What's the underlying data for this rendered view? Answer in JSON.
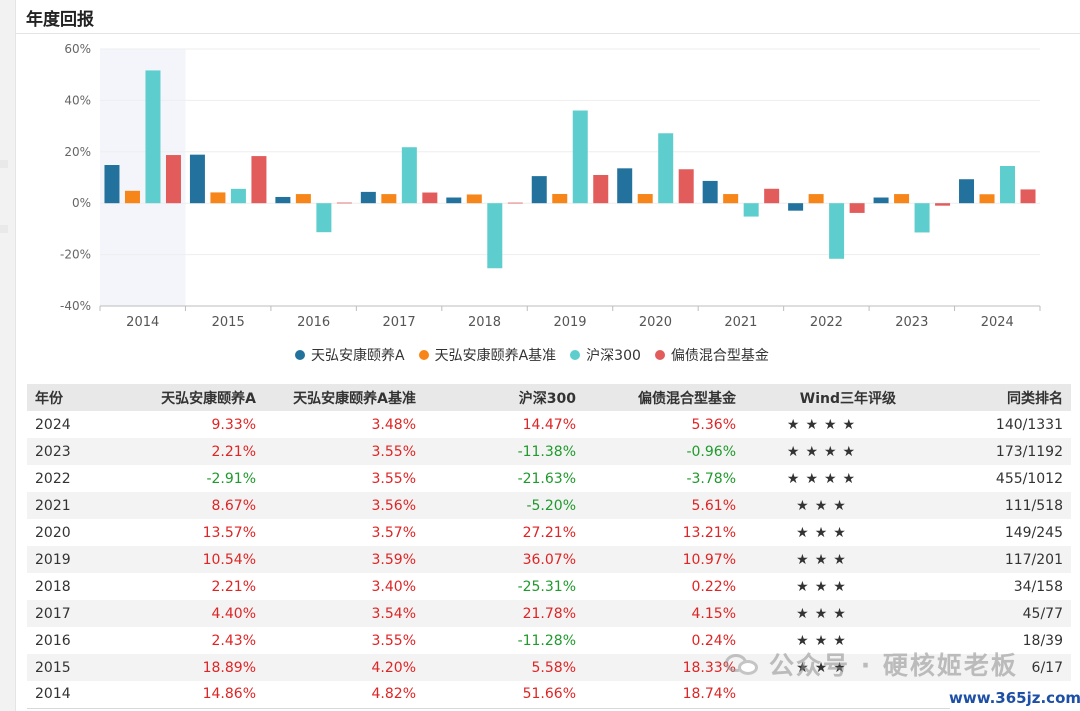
{
  "header": {
    "title": "年度回报"
  },
  "chart_data": {
    "type": "bar",
    "categories": [
      "2014",
      "2015",
      "2016",
      "2017",
      "2018",
      "2019",
      "2020",
      "2021",
      "2022",
      "2023",
      "2024"
    ],
    "series": [
      {
        "name": "天弘安康颐养A",
        "color": "#23729d",
        "values": [
          14.86,
          18.89,
          2.43,
          4.4,
          2.21,
          10.54,
          13.57,
          8.67,
          -2.91,
          2.21,
          9.33
        ]
      },
      {
        "name": "天弘安康颐养A基准",
        "color": "#f7861a",
        "values": [
          4.82,
          4.2,
          3.55,
          3.54,
          3.4,
          3.59,
          3.57,
          3.56,
          3.55,
          3.55,
          3.48
        ]
      },
      {
        "name": "沪深300",
        "color": "#5ecdcd",
        "values": [
          51.66,
          5.58,
          -11.28,
          21.78,
          -25.31,
          36.07,
          27.21,
          -5.2,
          -21.63,
          -11.38,
          14.47
        ]
      },
      {
        "name": "偏债混合型基金",
        "color": "#e25c5c",
        "values": [
          18.74,
          18.33,
          0.24,
          4.15,
          0.22,
          10.97,
          13.21,
          5.61,
          -3.78,
          -0.96,
          5.36
        ]
      }
    ],
    "ylim": [
      -40,
      60
    ],
    "yticks": [
      60,
      40,
      20,
      0,
      -20,
      -40
    ],
    "ytick_labels": [
      "60%",
      "40%",
      "20%",
      "0%",
      "-20%",
      "-40%"
    ],
    "highlighted_category": "2014",
    "grid": true,
    "legend_position": "bottom"
  },
  "table": {
    "headers": [
      "年份",
      "天弘安康颐养A",
      "天弘安康颐养A基准",
      "沪深300",
      "偏债混合型基金",
      "Wind三年评级",
      "同类排名"
    ],
    "rows": [
      {
        "year": "2024",
        "fund": "9.33%",
        "bench": "3.48%",
        "hs300": "14.47%",
        "peer": "5.36%",
        "stars": "★★★★",
        "rank": "140/1331"
      },
      {
        "year": "2023",
        "fund": "2.21%",
        "bench": "3.55%",
        "hs300": "-11.38%",
        "peer": "-0.96%",
        "stars": "★★★★",
        "rank": "173/1192"
      },
      {
        "year": "2022",
        "fund": "-2.91%",
        "bench": "3.55%",
        "hs300": "-21.63%",
        "peer": "-3.78%",
        "stars": "★★★★",
        "rank": "455/1012"
      },
      {
        "year": "2021",
        "fund": "8.67%",
        "bench": "3.56%",
        "hs300": "-5.20%",
        "peer": "5.61%",
        "stars": "★★★",
        "rank": "111/518"
      },
      {
        "year": "2020",
        "fund": "13.57%",
        "bench": "3.57%",
        "hs300": "27.21%",
        "peer": "13.21%",
        "stars": "★★★",
        "rank": "149/245"
      },
      {
        "year": "2019",
        "fund": "10.54%",
        "bench": "3.59%",
        "hs300": "36.07%",
        "peer": "10.97%",
        "stars": "★★★",
        "rank": "117/201"
      },
      {
        "year": "2018",
        "fund": "2.21%",
        "bench": "3.40%",
        "hs300": "-25.31%",
        "peer": "0.22%",
        "stars": "★★★",
        "rank": "34/158"
      },
      {
        "year": "2017",
        "fund": "4.40%",
        "bench": "3.54%",
        "hs300": "21.78%",
        "peer": "4.15%",
        "stars": "★★★",
        "rank": "45/77"
      },
      {
        "year": "2016",
        "fund": "2.43%",
        "bench": "3.55%",
        "hs300": "-11.28%",
        "peer": "0.24%",
        "stars": "★★★",
        "rank": "18/39"
      },
      {
        "year": "2015",
        "fund": "18.89%",
        "bench": "4.20%",
        "hs300": "5.58%",
        "peer": "18.33%",
        "stars": "★★★",
        "rank": "6/17"
      },
      {
        "year": "2014",
        "fund": "14.86%",
        "bench": "4.82%",
        "hs300": "51.66%",
        "peer": "18.74%",
        "stars": "",
        "rank": "--"
      }
    ]
  },
  "watermark": {
    "name": "公众号 · 硬核姬老板"
  },
  "site_tag": {
    "text": "www.365jz.com"
  },
  "colors": {
    "positive": "#e02424",
    "negative": "#1f9a2c",
    "star": "#e0231c",
    "highlight": "#f3f5fb"
  }
}
